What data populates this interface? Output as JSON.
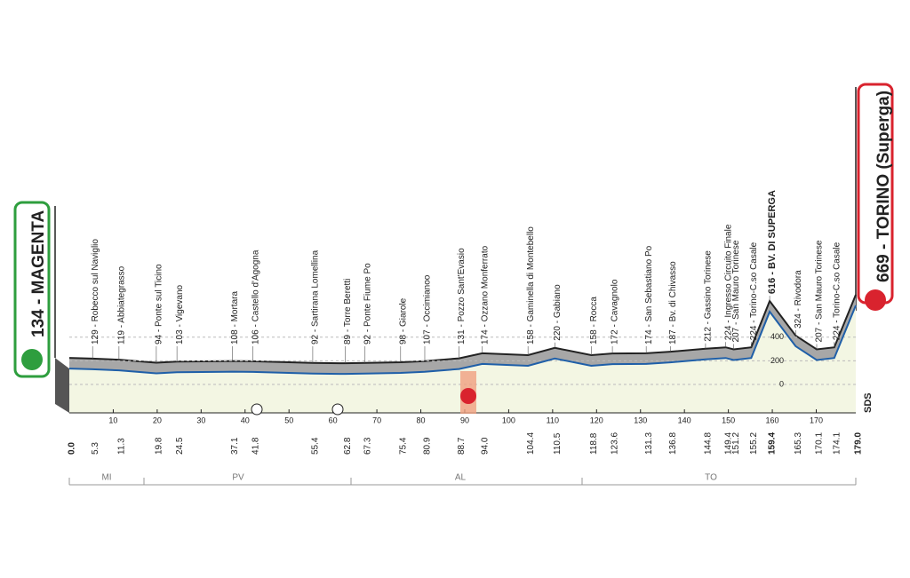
{
  "chart_data": {
    "type": "area",
    "start": "134 - MAGENTA",
    "finish": "669 - TORINO (Superga)",
    "x": [
      0,
      5.3,
      11.3,
      19.8,
      24.5,
      37.1,
      41.8,
      55.4,
      62.8,
      67.3,
      75.4,
      80.9,
      88.7,
      94.0,
      104.4,
      110.5,
      118.8,
      123.6,
      131.3,
      136.8,
      144.8,
      149.4,
      151.2,
      155.2,
      159.4,
      165.3,
      170.1,
      174.1,
      179.0
    ],
    "values": [
      134,
      129,
      119,
      94,
      103,
      108,
      106,
      92,
      89,
      92,
      98,
      107,
      131,
      174,
      158,
      220,
      158,
      172,
      174,
      187,
      212,
      224,
      207,
      224,
      616,
      324,
      207,
      224,
      669
    ],
    "waypoints": [
      "129 - Robecco sul Naviglio",
      "119 - Abbiategrasso",
      "94 - Ponte sul Ticino",
      "103 - Vigevano",
      "108 - Mortara",
      "106 - Castello d'Agogna",
      "92 - Sartirana Lomellina",
      "89 - Torre Beretti",
      "92 - Ponte Fiume Po",
      "98 - Giarole",
      "107 - Occimianoo",
      "131 - Pozzo Sant'Evasio",
      "174 - Ozzano Monferrato",
      "158 - Gaminella di Montebello",
      "220 - Gabiano",
      "158 - Rocca",
      "172 - Cavagnolo",
      "174 - San Sebastiano Po",
      "187 - Bv. di Chivasso",
      "212 - Gassino Torinese",
      "224 - Ingresso Circuito Finale",
      "207 - San Mauro Torinese",
      "224 - Torino-C.so Casale",
      "616 - BV. DI SUPERGA",
      "324 - Rivodora",
      "207 - San Mauro Torinese",
      "224 - Torino-C.so Casale"
    ],
    "distances": [
      {
        "value": 0,
        "label": "0.0"
      },
      5.3,
      11.3,
      19.8,
      24.5,
      37.1,
      41.8,
      55.4,
      62.8,
      67.3,
      75.4,
      80.9,
      88.7,
      {
        "value": 94,
        "label": "94.0"
      },
      104.4,
      110.5,
      118.8,
      123.6,
      131.3,
      136.8,
      144.8,
      149.4,
      151.2,
      155.2,
      159.4,
      165.3,
      170.1,
      174.1,
      {
        "value": 179,
        "label": "179.0"
      }
    ],
    "xlim": [
      0,
      179
    ],
    "xticks": [
      10,
      20,
      30,
      40,
      50,
      60,
      70,
      80,
      90,
      100,
      110,
      120,
      130,
      140,
      150,
      160,
      170
    ],
    "yticks": [
      0,
      200,
      400
    ],
    "grid": true,
    "color": "#1f5fa8",
    "provinces": [
      "MI",
      "PV",
      "AL",
      "TO"
    ],
    "logo": "SDS"
  }
}
